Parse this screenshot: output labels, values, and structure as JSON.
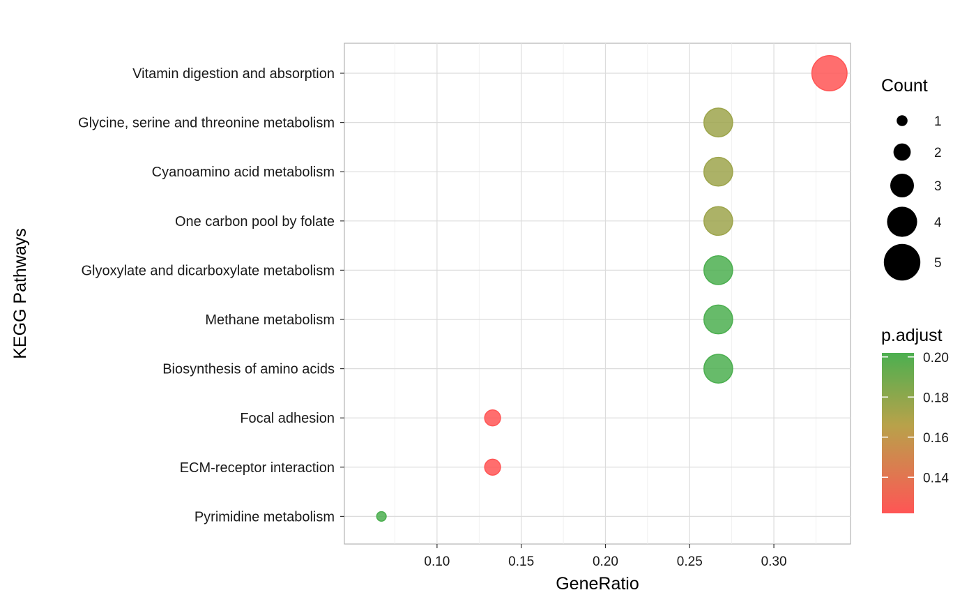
{
  "chart_data": {
    "type": "scatter",
    "xlabel": "GeneRatio",
    "ylabel": "KEGG Pathways",
    "xlim": [
      0.045,
      0.3455
    ],
    "x_ticks": [
      "0.10",
      "0.15",
      "0.20",
      "0.25",
      "0.30"
    ],
    "x_tick_values": [
      0.1,
      0.15,
      0.2,
      0.25,
      0.3
    ],
    "grid": true,
    "categories": [
      "Vitamin digestion and absorption",
      "Glycine, serine and threonine metabolism",
      "Cyanoamino acid metabolism",
      "One carbon pool by folate",
      "Glyoxylate and dicarboxylate metabolism",
      "Methane metabolism",
      "Biosynthesis of amino acids",
      "Focal adhesion",
      "ECM-receptor interaction",
      "Pyrimidine metabolism"
    ],
    "points": [
      {
        "category": "Vitamin digestion and absorption",
        "x": 0.333,
        "count": 5,
        "p_adjust": 0.122
      },
      {
        "category": "Glycine, serine and threonine metabolism",
        "x": 0.267,
        "count": 4,
        "p_adjust": 0.175
      },
      {
        "category": "Cyanoamino acid metabolism",
        "x": 0.267,
        "count": 4,
        "p_adjust": 0.175
      },
      {
        "category": "One carbon pool by folate",
        "x": 0.267,
        "count": 4,
        "p_adjust": 0.175
      },
      {
        "category": "Glyoxylate and dicarboxylate metabolism",
        "x": 0.267,
        "count": 4,
        "p_adjust": 0.202
      },
      {
        "category": "Methane metabolism",
        "x": 0.267,
        "count": 4,
        "p_adjust": 0.202
      },
      {
        "category": "Biosynthesis of amino acids",
        "x": 0.267,
        "count": 4,
        "p_adjust": 0.202
      },
      {
        "category": "Focal adhesion",
        "x": 0.133,
        "count": 2,
        "p_adjust": 0.122
      },
      {
        "category": "ECM-receptor interaction",
        "x": 0.133,
        "count": 2,
        "p_adjust": 0.122
      },
      {
        "category": "Pyrimidine metabolism",
        "x": 0.067,
        "count": 1,
        "p_adjust": 0.202
      }
    ],
    "size_legend": {
      "title": "Count",
      "values": [
        1,
        2,
        3,
        4,
        5
      ],
      "labels": [
        "1",
        "2",
        "3",
        "4",
        "5"
      ]
    },
    "color_legend": {
      "title": "p.adjust",
      "low_color": "#ff5555",
      "high_color": "#4caf50",
      "range": [
        0.122,
        0.202
      ],
      "ticks": [
        0.14,
        0.16,
        0.18,
        0.2
      ],
      "tick_labels": [
        "0.14",
        "0.16",
        "0.18",
        "0.20"
      ]
    },
    "legend_position": "right"
  }
}
